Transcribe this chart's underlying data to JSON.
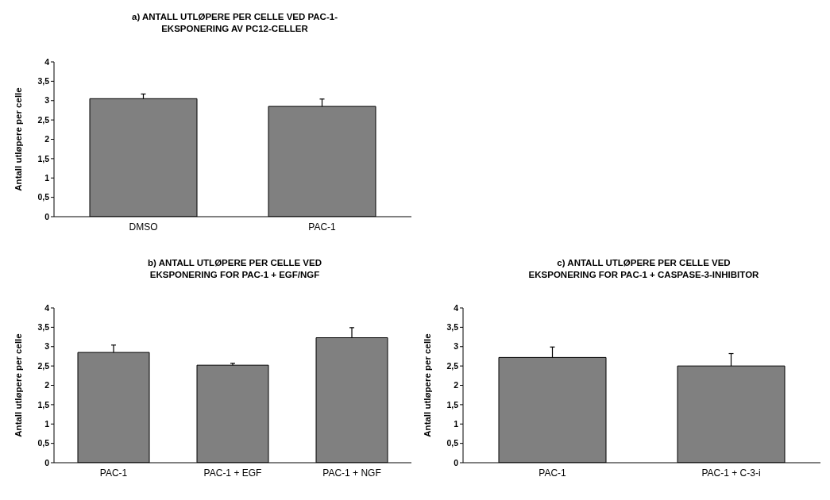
{
  "chart_data": [
    {
      "type": "bar",
      "title": "a) ANTALL UTLØPERE PER CELLE VED PAC-1-\nEKSPONERING AV PC12-CELLER",
      "ylabel": "Antall utløpere per celle",
      "categories": [
        "DMSO",
        "PAC-1"
      ],
      "values": [
        3.05,
        2.85
      ],
      "errors": [
        [
          3.05,
          3.17
        ],
        [
          2.85,
          3.04
        ]
      ],
      "color": "#808080",
      "ylim": [
        0,
        4
      ],
      "yticks": [
        0,
        {
          "value": 0.5,
          "label": "0,5"
        },
        1,
        {
          "value": 1.5,
          "label": "1,5"
        },
        2,
        {
          "value": 2.5,
          "label": "2,5"
        },
        3,
        {
          "value": 3.5,
          "label": "3,5"
        },
        4
      ],
      "grid": false,
      "legend": false
    },
    {
      "type": "bar",
      "title": "b) ANTALL UTLØPERE PER CELLE VED\nEKSPONERING FOR PAC-1 + EGF/NGF",
      "ylabel": "Antall utløpere per celle",
      "categories": [
        "PAC-1",
        "PAC-1 + EGF",
        "PAC-1 + NGF"
      ],
      "values": [
        2.85,
        2.52,
        3.23
      ],
      "errors": [
        [
          2.85,
          3.04
        ],
        [
          2.52,
          2.57
        ],
        [
          3.23,
          3.49
        ]
      ],
      "color": "#808080",
      "ylim": [
        0,
        4
      ],
      "yticks": [
        0,
        {
          "value": 0.5,
          "label": "0,5"
        },
        1,
        {
          "value": 1.5,
          "label": "1,5"
        },
        2,
        {
          "value": 2.5,
          "label": "2,5"
        },
        3,
        {
          "value": 3.5,
          "label": "3,5"
        },
        4
      ],
      "grid": false,
      "legend": false
    },
    {
      "type": "bar",
      "title": "c) ANTALL UTLØPERE PER CELLE VED\nEKSPONERING FOR PAC-1 + CASPASE-3-INHIBITOR",
      "ylabel": "Antall utløpere per celle",
      "categories": [
        "PAC-1",
        "PAC-1 + C-3-i"
      ],
      "values": [
        2.72,
        2.5
      ],
      "errors": [
        [
          2.72,
          2.99
        ],
        [
          2.5,
          2.82
        ]
      ],
      "color": "#808080",
      "ylim": [
        0,
        4
      ],
      "yticks": [
        0,
        {
          "value": 0.5,
          "label": "0,5"
        },
        1,
        {
          "value": 1.5,
          "label": "1,5"
        },
        2,
        {
          "value": 2.5,
          "label": "2,5"
        },
        3,
        {
          "value": 3.5,
          "label": "3,5"
        },
        4
      ],
      "grid": false,
      "legend": false
    }
  ]
}
